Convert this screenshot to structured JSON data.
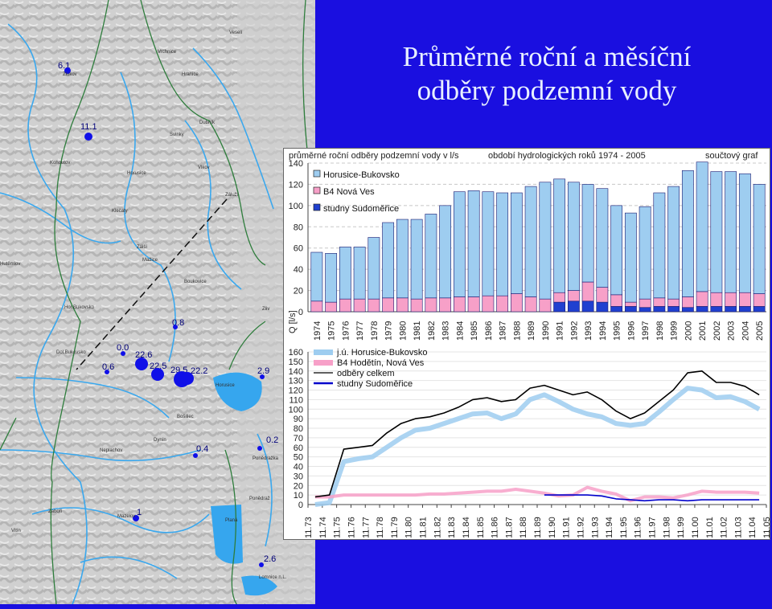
{
  "title_line1": "Průměrné roční a měsíční",
  "title_line2": "odběry podzemní vody",
  "panel": {
    "header_left": "průměrné roční odběry podzemní vody v l/s",
    "header_mid": "období hydrologických roků 1974 - 2005",
    "header_right": "součtový graf"
  },
  "map": {
    "wells": [
      {
        "label": "6.1"
      },
      {
        "label": "11.1"
      },
      {
        "label": "0.8"
      },
      {
        "label": "0.0"
      },
      {
        "label": "22.6"
      },
      {
        "label": "0.6"
      },
      {
        "label": "22.5"
      },
      {
        "label": "29.5"
      },
      {
        "label": "22.2"
      },
      {
        "label": "2.9"
      },
      {
        "label": "0.4"
      },
      {
        "label": "0.2"
      },
      {
        "label": "1"
      },
      {
        "label": "2.6"
      }
    ],
    "places": [
      "Vrchnice",
      "Hranice",
      "Dubník",
      "Svinky",
      "Kohoutov",
      "Horusice",
      "Mažice",
      "Klečaty",
      "Zálší",
      "Hutěmlov",
      "Boukovice",
      "Hor.Bukovsko",
      "Dol.Bukovsko",
      "Horusice",
      "Bošiliec",
      "Dynín",
      "Neplachov",
      "Ponědražka",
      "Mazelov",
      "Vitín",
      "Planá",
      "Ponědraž",
      "Lomnice n.L.",
      "Zliv",
      "Záluží",
      "Vlkov",
      "Veselí",
      "Zlukov",
      "Zaboří"
    ]
  },
  "chart_data": [
    {
      "type": "bar",
      "stacked": true,
      "ylabel": "Q [l/s]",
      "ylim": [
        0,
        140
      ],
      "yticks": [
        0,
        20,
        40,
        60,
        80,
        100,
        120,
        140
      ],
      "categories": [
        "1974",
        "1975",
        "1976",
        "1977",
        "1978",
        "1979",
        "1980",
        "1981",
        "1982",
        "1983",
        "1984",
        "1985",
        "1986",
        "1987",
        "1988",
        "1989",
        "1990",
        "1991",
        "1992",
        "1993",
        "1994",
        "1995",
        "1996",
        "1997",
        "1998",
        "1999",
        "2000",
        "2001",
        "2002",
        "2003",
        "2004",
        "2005"
      ],
      "series": [
        {
          "name": "studny Sudoměřice",
          "color": "#2040d0",
          "values": [
            0,
            0,
            0,
            0,
            0,
            0,
            0,
            0,
            0,
            0,
            0,
            0,
            0,
            0,
            0,
            0,
            0,
            9,
            10,
            10,
            9,
            5,
            5,
            4,
            5,
            5,
            4,
            5,
            5,
            5,
            5,
            5
          ]
        },
        {
          "name": "B4 Nová Ves",
          "color": "#f7a0c8",
          "values": [
            10,
            9,
            12,
            12,
            12,
            13,
            13,
            12,
            13,
            13,
            14,
            14,
            15,
            15,
            17,
            14,
            12,
            9,
            10,
            18,
            14,
            11,
            4,
            8,
            8,
            7,
            10,
            14,
            13,
            13,
            13,
            12
          ]
        },
        {
          "name": "Horusice-Bukovsko",
          "color": "#9ecdf0",
          "values": [
            46,
            46,
            49,
            49,
            58,
            71,
            74,
            75,
            79,
            87,
            99,
            100,
            98,
            97,
            95,
            104,
            110,
            107,
            102,
            92,
            93,
            84,
            84,
            87,
            99,
            106,
            119,
            122,
            114,
            114,
            112,
            103
          ]
        }
      ]
    },
    {
      "type": "line",
      "ylim": [
        0,
        160
      ],
      "yticks": [
        0,
        10,
        20,
        30,
        40,
        50,
        60,
        70,
        80,
        90,
        100,
        110,
        120,
        130,
        140,
        150,
        160
      ],
      "xticks": [
        "11.73",
        "11.74",
        "11.75",
        "11.76",
        "11.77",
        "11.78",
        "11.79",
        "11.80",
        "11.81",
        "11.82",
        "11.83",
        "11.84",
        "11.85",
        "11.86",
        "11.87",
        "11.88",
        "11.89",
        "11.90",
        "11.91",
        "11.92",
        "11.93",
        "11.94",
        "11.95",
        "11.96",
        "11.97",
        "11.98",
        "11.99",
        "11.00",
        "11.01",
        "11.02",
        "11.03",
        "11.04",
        "11.05"
      ],
      "series": [
        {
          "name": "j.ú. Horusice-Bukovsko",
          "color": "#9ecdf0",
          "values": [
            0,
            2,
            45,
            48,
            50,
            60,
            70,
            78,
            80,
            85,
            90,
            95,
            96,
            90,
            95,
            110,
            115,
            108,
            100,
            95,
            92,
            85,
            83,
            85,
            97,
            110,
            122,
            120,
            112,
            113,
            108,
            100
          ]
        },
        {
          "name": "B4  Hodětín, Nová Ves",
          "color": "#f7a0c8",
          "values": [
            8,
            8,
            10,
            10,
            10,
            10,
            10,
            10,
            11,
            11,
            12,
            13,
            14,
            14,
            16,
            14,
            12,
            9,
            10,
            18,
            14,
            11,
            4,
            8,
            8,
            7,
            10,
            14,
            13,
            13,
            13,
            12
          ]
        },
        {
          "name": "odběry celkem",
          "color": "#000000",
          "values": [
            8,
            10,
            58,
            60,
            62,
            75,
            85,
            90,
            92,
            96,
            102,
            110,
            112,
            108,
            110,
            122,
            125,
            120,
            115,
            118,
            110,
            98,
            90,
            96,
            108,
            120,
            138,
            140,
            128,
            128,
            124,
            115
          ]
        },
        {
          "name": "studny Sudoměřice",
          "color": "#0000cc",
          "values": [
            null,
            null,
            null,
            null,
            null,
            null,
            null,
            null,
            null,
            null,
            null,
            null,
            null,
            null,
            null,
            null,
            10,
            10,
            10,
            10,
            9,
            6,
            5,
            4,
            5,
            5,
            4,
            5,
            5,
            5,
            5,
            5
          ]
        }
      ]
    }
  ]
}
